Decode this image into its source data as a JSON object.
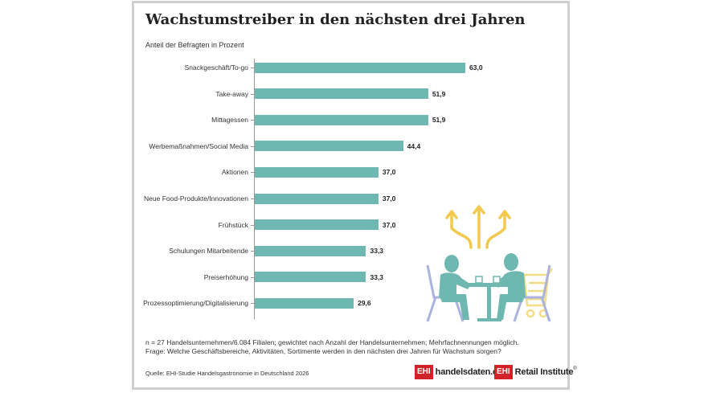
{
  "chart_data": {
    "type": "bar",
    "orientation": "horizontal",
    "title": "Wachstumstreiber in den nächsten drei Jahren",
    "subtitle": "Anteil der Befragten in Prozent",
    "categories": [
      "Snackgeschäft/To-go",
      "Take-away",
      "Mittagessen",
      "Werbemaßnahmen/Social Media",
      "Aktionen",
      "Neue Food-Produkte/Innovationen",
      "Frühstück",
      "Schulungen Mitarbeitende",
      "Preiserhöhung",
      "Prozessoptimierung/Digitalisierung"
    ],
    "values": [
      63.0,
      51.9,
      51.9,
      44.4,
      37.0,
      37.0,
      37.0,
      33.3,
      33.3,
      29.6
    ],
    "value_labels": [
      "63,0",
      "51,9",
      "51,9",
      "44,4",
      "37,0",
      "37,0",
      "37,0",
      "33,3",
      "33,3",
      "29,6"
    ],
    "xlim": [
      0,
      63
    ],
    "grid": false,
    "bar_color": "#6fb7b1"
  },
  "notes": {
    "line1": "n = 27 Handelsunternehmen/6.084 Filialen; gewichtet nach Anzahl der Handelsunternehmen; Mehrfachnennungen möglich.",
    "line2": "Frage: Welche Geschäftsbereiche, Aktivitäten, Sortimente werden in den nächsten drei Jahren für Wachstum sorgen?"
  },
  "source": "Quelle: EHI-Studie Handelsgastronomie in Deutschland 2026",
  "logos": {
    "ehi_mark": "EHI",
    "handelsdaten": "handelsdaten.de",
    "retail_institute": "Retail Institute",
    "registered": "®"
  },
  "illustration": {
    "icon": "people-dining-growth-illustration",
    "colors": {
      "figure": "#6fb7b1",
      "chair": "#aab3dd",
      "arrow": "#f2c94c",
      "cart": "#f2dc86"
    }
  }
}
